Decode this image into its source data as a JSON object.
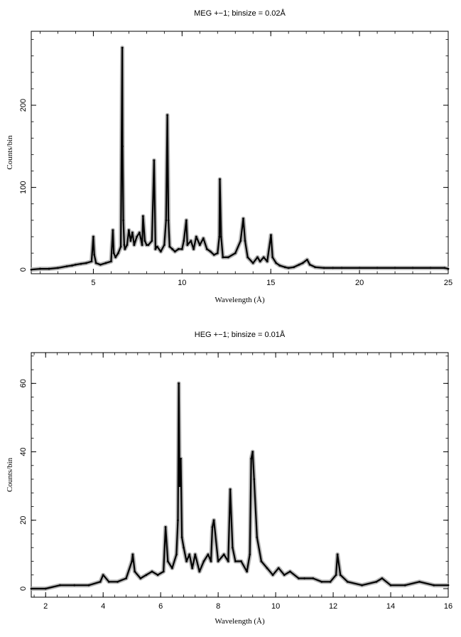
{
  "chart_data": [
    {
      "type": "line",
      "title": "MEG +−1; binsize = 0.02Å",
      "xlabel": "Wavelength (Å)",
      "ylabel": "Counts/bin",
      "xlim": [
        1.5,
        25
      ],
      "ylim": [
        -5,
        290
      ],
      "x_ticks": [
        5,
        10,
        15,
        20,
        25
      ],
      "y_ticks": [
        0,
        100,
        200
      ],
      "grid": false,
      "series": [
        {
          "x": [
            1.5,
            2.0,
            2.5,
            3.0,
            3.5,
            3.8,
            4.0,
            4.3,
            4.6,
            4.9,
            5.0,
            5.05,
            5.15,
            5.4,
            5.7,
            6.0,
            6.1,
            6.15,
            6.25,
            6.4,
            6.55,
            6.63,
            6.65,
            6.69,
            6.74,
            6.78,
            6.9,
            7.0,
            7.1,
            7.2,
            7.3,
            7.45,
            7.6,
            7.75,
            7.8,
            7.9,
            8.0,
            8.1,
            8.3,
            8.42,
            8.5,
            8.6,
            8.8,
            9.0,
            9.1,
            9.17,
            9.23,
            9.3,
            9.45,
            9.6,
            9.8,
            10.0,
            10.1,
            10.24,
            10.3,
            10.5,
            10.65,
            10.8,
            11.0,
            11.2,
            11.4,
            11.6,
            11.8,
            12.0,
            12.1,
            12.13,
            12.2,
            12.3,
            12.6,
            13.0,
            13.3,
            13.45,
            13.55,
            13.7,
            14.0,
            14.25,
            14.4,
            14.6,
            14.8,
            15.01,
            15.1,
            15.3,
            15.5,
            15.8,
            16.0,
            16.3,
            16.6,
            16.8,
            17.05,
            17.2,
            17.5,
            18.0,
            18.5,
            19.0,
            20.0,
            21.0,
            22.0,
            23.0,
            24.0,
            24.8,
            25.0
          ],
          "y": [
            0,
            1,
            1,
            2,
            4,
            5,
            6,
            7,
            8,
            10,
            40,
            18,
            8,
            6,
            8,
            10,
            48,
            20,
            15,
            20,
            28,
            270,
            150,
            60,
            30,
            25,
            30,
            48,
            35,
            45,
            30,
            40,
            45,
            30,
            65,
            35,
            30,
            30,
            35,
            133,
            25,
            28,
            22,
            30,
            60,
            188,
            60,
            28,
            25,
            22,
            25,
            25,
            35,
            60,
            30,
            35,
            25,
            40,
            30,
            38,
            25,
            22,
            18,
            20,
            40,
            110,
            40,
            15,
            15,
            20,
            35,
            62,
            35,
            15,
            8,
            15,
            10,
            15,
            10,
            42,
            15,
            8,
            5,
            3,
            2,
            3,
            6,
            8,
            12,
            6,
            3,
            2,
            2,
            2,
            2,
            2,
            2,
            2,
            2,
            2,
            1
          ]
        }
      ]
    },
    {
      "type": "line",
      "title": "HEG +−1; binsize = 0.01Å",
      "xlabel": "Wavelength (Å)",
      "ylabel": "Counts/bin",
      "xlim": [
        1.5,
        16
      ],
      "ylim": [
        -2.5,
        69
      ],
      "x_ticks": [
        2,
        4,
        6,
        8,
        10,
        12,
        14,
        16
      ],
      "y_ticks": [
        0,
        20,
        40,
        60
      ],
      "grid": false,
      "series": [
        {
          "x": [
            1.5,
            2.0,
            2.5,
            3.0,
            3.5,
            3.9,
            4.0,
            4.2,
            4.5,
            4.8,
            5.0,
            5.03,
            5.1,
            5.3,
            5.5,
            5.7,
            5.9,
            6.1,
            6.17,
            6.25,
            6.4,
            6.55,
            6.6,
            6.63,
            6.66,
            6.7,
            6.74,
            6.8,
            6.9,
            7.0,
            7.1,
            7.2,
            7.35,
            7.5,
            7.65,
            7.75,
            7.8,
            7.85,
            8.0,
            8.2,
            8.35,
            8.42,
            8.5,
            8.6,
            8.8,
            9.0,
            9.1,
            9.15,
            9.2,
            9.25,
            9.35,
            9.5,
            9.7,
            9.9,
            10.1,
            10.3,
            10.5,
            10.8,
            11.0,
            11.3,
            11.6,
            11.9,
            12.1,
            12.15,
            12.25,
            12.5,
            13.0,
            13.5,
            13.7,
            14.0,
            14.5,
            15.0,
            15.5,
            16.0
          ],
          "y": [
            0,
            0,
            1,
            1,
            1,
            2,
            4,
            2,
            2,
            3,
            8,
            10,
            5,
            3,
            4,
            5,
            4,
            5,
            18,
            8,
            6,
            10,
            20,
            60,
            30,
            38,
            15,
            12,
            8,
            10,
            6,
            10,
            5,
            8,
            10,
            8,
            18,
            20,
            8,
            10,
            8,
            29,
            12,
            8,
            8,
            5,
            10,
            38,
            40,
            32,
            15,
            8,
            6,
            4,
            6,
            4,
            5,
            3,
            3,
            3,
            2,
            2,
            4,
            10,
            4,
            2,
            1,
            2,
            3,
            1,
            1,
            2,
            1,
            1
          ]
        }
      ]
    }
  ]
}
